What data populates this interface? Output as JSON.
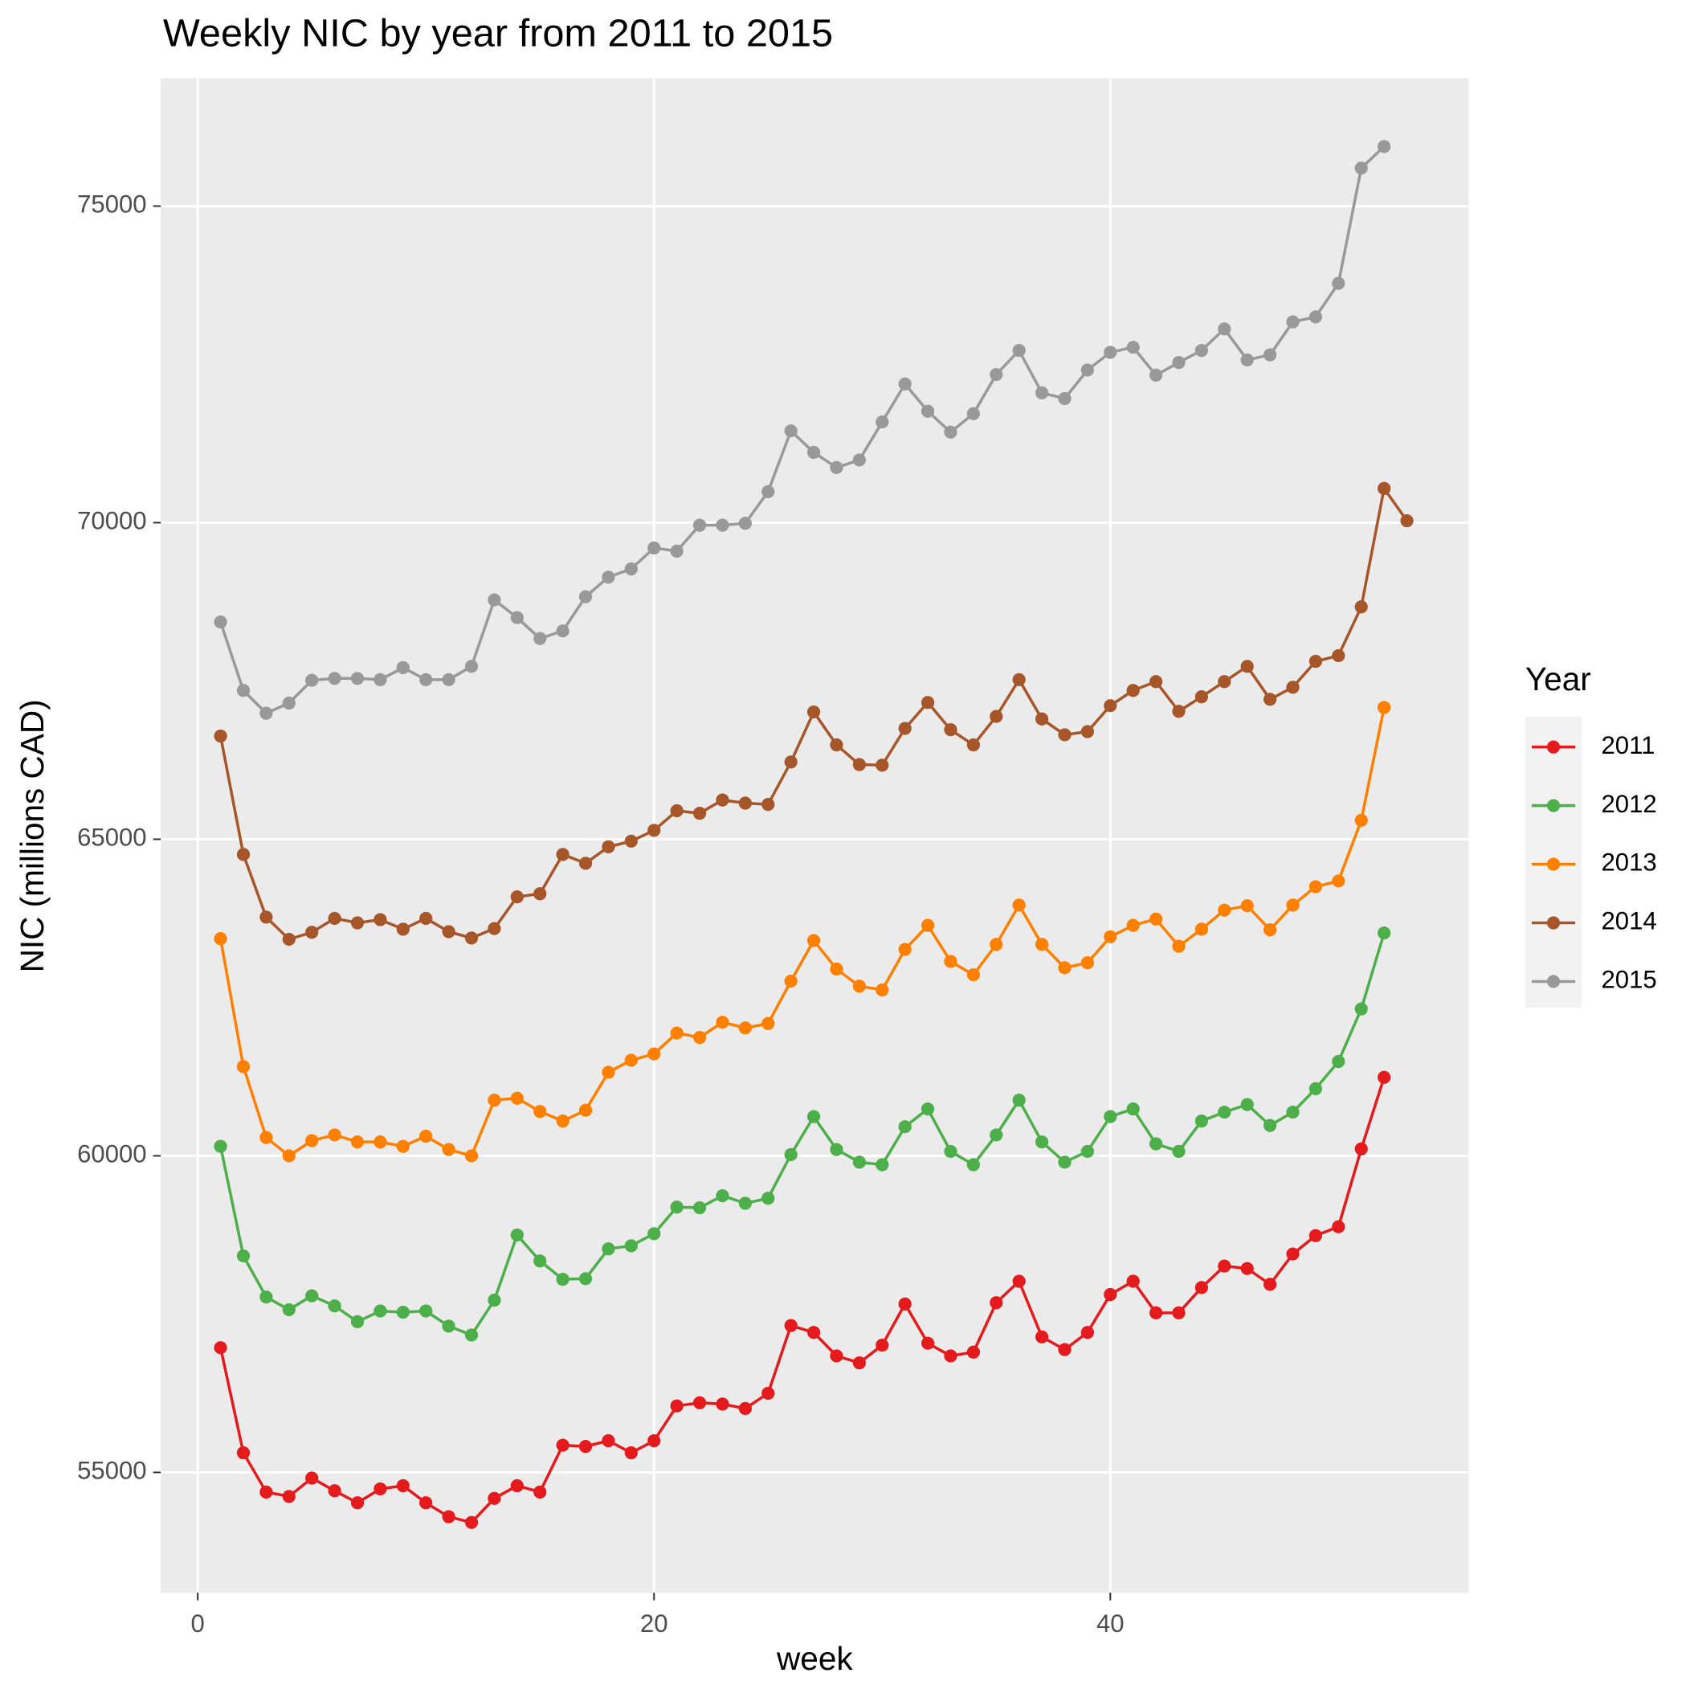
{
  "chart_data": {
    "type": "line",
    "title": "Weekly NIC by year from 2011 to 2015",
    "x_label": "week",
    "y_label": "NIC (millions CAD)",
    "legend_title": "Year",
    "x": [
      1,
      2,
      3,
      4,
      5,
      6,
      7,
      8,
      9,
      10,
      11,
      12,
      13,
      14,
      15,
      16,
      17,
      18,
      19,
      20,
      21,
      22,
      23,
      24,
      25,
      26,
      27,
      28,
      29,
      30,
      31,
      32,
      33,
      34,
      35,
      36,
      37,
      38,
      39,
      40,
      41,
      42,
      43,
      44,
      45,
      46,
      47,
      48,
      49,
      50,
      51,
      52,
      53
    ],
    "series": [
      {
        "name": "2011",
        "color": "#e41a1c",
        "values": [
          56970,
          55310,
          54690,
          54620,
          54910,
          54710,
          54520,
          54740,
          54790,
          54520,
          54300,
          54210,
          54590,
          54790,
          54690,
          55430,
          55410,
          55500,
          55310,
          55500,
          56050,
          56100,
          56080,
          56010,
          56250,
          57320,
          57210,
          56840,
          56730,
          57010,
          57660,
          57040,
          56840,
          56900,
          57680,
          58020,
          57140,
          56940,
          57210,
          57810,
          58020,
          57520,
          57520,
          57920,
          58260,
          58220,
          57970,
          58450,
          58740,
          58880,
          60110,
          61240,
          null
        ]
      },
      {
        "name": "2012",
        "color": "#4daf4a",
        "values": [
          60150,
          58420,
          57770,
          57570,
          57790,
          57630,
          57380,
          57550,
          57530,
          57550,
          57310,
          57170,
          57720,
          58750,
          58340,
          58050,
          58060,
          58530,
          58580,
          58770,
          59190,
          59180,
          59370,
          59250,
          59330,
          60020,
          60620,
          60100,
          59900,
          59860,
          60460,
          60740,
          60070,
          59860,
          60330,
          60880,
          60220,
          59900,
          60070,
          60620,
          60740,
          60190,
          60070,
          60550,
          60690,
          60810,
          60480,
          60690,
          61060,
          61490,
          62320,
          63520,
          null
        ]
      },
      {
        "name": "2013",
        "color": "#ff7f00",
        "values": [
          63430,
          61410,
          60290,
          60000,
          60240,
          60330,
          60220,
          60220,
          60150,
          60310,
          60100,
          60000,
          60880,
          60910,
          60700,
          60550,
          60720,
          61320,
          61510,
          61610,
          61940,
          61870,
          62110,
          62020,
          62090,
          62760,
          63400,
          62950,
          62680,
          62620,
          63260,
          63640,
          63070,
          62860,
          63340,
          63960,
          63340,
          62970,
          63050,
          63460,
          63640,
          63740,
          63310,
          63580,
          63880,
          63950,
          63570,
          63960,
          64250,
          64340,
          65300,
          67080,
          null
        ]
      },
      {
        "name": "2014",
        "color": "#a65628",
        "values": [
          66630,
          64760,
          63770,
          63420,
          63530,
          63750,
          63680,
          63730,
          63580,
          63750,
          63540,
          63440,
          63590,
          64090,
          64140,
          64760,
          64620,
          64880,
          64970,
          65140,
          65450,
          65410,
          65620,
          65570,
          65550,
          66220,
          67010,
          66490,
          66180,
          66170,
          66750,
          67160,
          66730,
          66490,
          66940,
          67520,
          66900,
          66650,
          66700,
          67110,
          67350,
          67490,
          67020,
          67250,
          67490,
          67730,
          67210,
          67400,
          67810,
          67900,
          68670,
          70540,
          70030
        ]
      },
      {
        "name": "2015",
        "color": "#999999",
        "values": [
          68430,
          67350,
          66990,
          67150,
          67510,
          67540,
          67540,
          67520,
          67710,
          67520,
          67520,
          67730,
          68780,
          68500,
          68170,
          68290,
          68830,
          69140,
          69270,
          69600,
          69550,
          69960,
          69960,
          69990,
          70490,
          71450,
          71110,
          70870,
          70990,
          71590,
          72190,
          71760,
          71430,
          71720,
          72340,
          72720,
          72050,
          71960,
          72410,
          72690,
          72770,
          72330,
          72530,
          72720,
          73060,
          72570,
          72650,
          73170,
          73250,
          73780,
          75600,
          75940,
          null
        ]
      }
    ],
    "xlim": [
      -1.62,
      55.71
    ],
    "ylim": [
      53100,
      77020
    ],
    "xticks": [
      0,
      20,
      40
    ],
    "yticks": [
      55000,
      60000,
      65000,
      70000,
      75000
    ],
    "grid": true
  }
}
